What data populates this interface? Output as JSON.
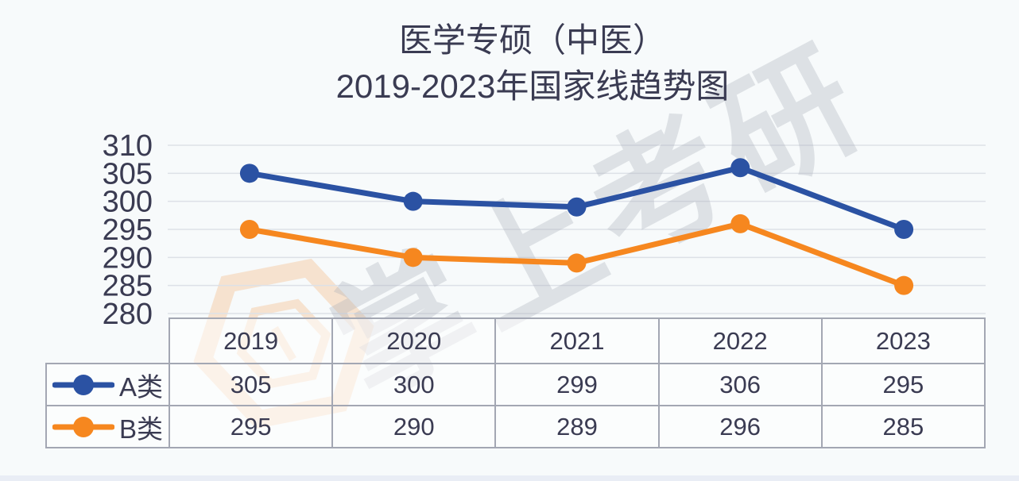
{
  "title": {
    "line1": "医学专硕（中医）",
    "line2": "2019-2023年国家线趋势图"
  },
  "watermark": {
    "text": "掌上考研"
  },
  "chart_data": {
    "type": "line",
    "title": "医学专硕（中医）2019-2023年国家线趋势图",
    "categories": [
      "2019",
      "2020",
      "2021",
      "2022",
      "2023"
    ],
    "series": [
      {
        "name": "A类",
        "values": [
          305,
          300,
          299,
          306,
          295
        ],
        "color": "#2b52a3"
      },
      {
        "name": "B类",
        "values": [
          295,
          290,
          289,
          296,
          285
        ],
        "color": "#f6871f"
      }
    ],
    "yticks": [
      310,
      305,
      300,
      295,
      290,
      285,
      280
    ],
    "ylim": [
      280,
      310
    ],
    "xlabel": "",
    "ylabel": "",
    "grid": "horizontal",
    "gridline_color": "#dde1e7",
    "marker": "circle",
    "legend_position": "table-left-column"
  }
}
